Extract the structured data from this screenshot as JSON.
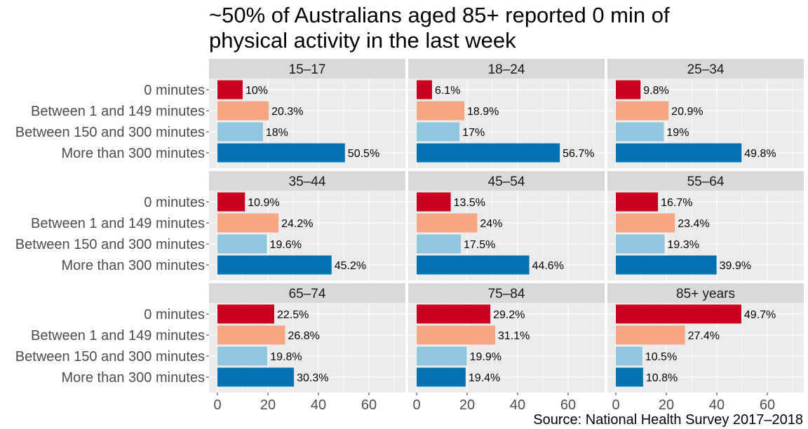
{
  "chart_data": {
    "type": "bar",
    "orientation": "horizontal",
    "title": "~50% of Australians aged 85+ reported 0 min of physical activity in the last week",
    "title_lines": [
      "~50% of Australians aged 85+ reported 0 min of",
      "physical activity in the last week"
    ],
    "caption": "Source: National Health Survey 2017–2018",
    "categories": [
      "0 minutes",
      "Between 1 and 149 minutes",
      "Between 150 and 300 minutes",
      "More than 300 minutes"
    ],
    "category_colors": [
      "#ca0020",
      "#f4a582",
      "#92c5de",
      "#0571b0"
    ],
    "xlim": [
      0,
      72
    ],
    "x_ticks": [
      "0",
      "20",
      "40",
      "60"
    ],
    "x_tick_values": [
      0,
      20,
      40,
      60
    ],
    "grid": true,
    "panel_background": "#ebebeb",
    "strip_background": "#d9d9d9",
    "panels": [
      {
        "name": "15–17",
        "values": [
          10,
          20.3,
          18,
          50.5
        ],
        "labels": [
          "10%",
          "20.3%",
          "18%",
          "50.5%"
        ]
      },
      {
        "name": "18–24",
        "values": [
          6.1,
          18.9,
          17,
          56.7
        ],
        "labels": [
          "6.1%",
          "18.9%",
          "17%",
          "56.7%"
        ]
      },
      {
        "name": "25–34",
        "values": [
          9.8,
          20.9,
          19,
          49.8
        ],
        "labels": [
          "9.8%",
          "20.9%",
          "19%",
          "49.8%"
        ]
      },
      {
        "name": "35–44",
        "values": [
          10.9,
          24.2,
          19.6,
          45.2
        ],
        "labels": [
          "10.9%",
          "24.2%",
          "19.6%",
          "45.2%"
        ]
      },
      {
        "name": "45–54",
        "values": [
          13.5,
          24,
          17.5,
          44.6
        ],
        "labels": [
          "13.5%",
          "24%",
          "17.5%",
          "44.6%"
        ]
      },
      {
        "name": "55–64",
        "values": [
          16.7,
          23.4,
          19.3,
          39.9
        ],
        "labels": [
          "16.7%",
          "23.4%",
          "19.3%",
          "39.9%"
        ]
      },
      {
        "name": "65–74",
        "values": [
          22.5,
          26.8,
          19.8,
          30.3
        ],
        "labels": [
          "22.5%",
          "26.8%",
          "19.8%",
          "30.3%"
        ]
      },
      {
        "name": "75–84",
        "values": [
          29.2,
          31.1,
          19.9,
          19.4
        ],
        "labels": [
          "29.2%",
          "31.1%",
          "19.9%",
          "19.4%"
        ]
      },
      {
        "name": "85+ years",
        "values": [
          49.7,
          27.4,
          10.5,
          10.8
        ],
        "labels": [
          "49.7%",
          "27.4%",
          "10.5%",
          "10.8%"
        ]
      }
    ]
  }
}
